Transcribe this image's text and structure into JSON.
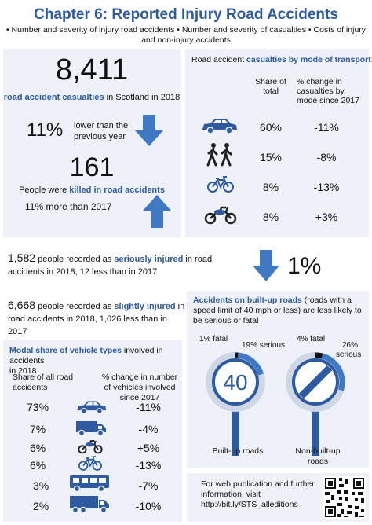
{
  "header": {
    "title": "Chapter 6: Reported Injury Road Accidents",
    "bullets_line1": "• Number and severity of injury road accidents • Number and severity of casualties • Costs of injury",
    "bullets_line2": "and non-injury accidents"
  },
  "casualties_panel": {
    "total_number": "8,411",
    "total_label_bold": "road accident casualties",
    "total_label_rest": " in Scotland in 2018",
    "decrease_pct": "11%",
    "decrease_text_1": "lower than the",
    "decrease_text_2": "previous year",
    "killed_number": "161",
    "killed_label_pre": "People were ",
    "killed_label_bold": "killed in road accidents",
    "killed_change": "11% more than 2017"
  },
  "mode_panel": {
    "title_pre": "Road accident ",
    "title_bold": "casualties by mode of transport",
    "title_post": ":",
    "col_share_1": "Share of",
    "col_share_2": "total",
    "col_change_1": "% change in",
    "col_change_2": "casualties by",
    "col_change_3": "mode since 2017",
    "rows": [
      {
        "icon": "car-icon",
        "share": "60%",
        "change": "-11%"
      },
      {
        "icon": "pedestrian-icon",
        "share": "15%",
        "change": "-8%"
      },
      {
        "icon": "bicycle-icon",
        "share": "8%",
        "change": "-13%"
      },
      {
        "icon": "motorcycle-icon",
        "share": "8%",
        "change": "+3%"
      }
    ]
  },
  "serious": {
    "number": "1,582",
    "pre": " people recorded as ",
    "bold": "seriously injured",
    "post": " in road",
    "line2": "accidents in 2018, 12 less than in 2017",
    "pct": "1%"
  },
  "slight": {
    "number": "6,668",
    "pre": " people recorded as ",
    "bold": "slightly injured",
    "post": " in",
    "line2": "road accidents in 2018, 1,026 less than in 2017"
  },
  "builtup_panel": {
    "title_bold": "Accidents on built-up roads",
    "title_rest_1": " (roads with a",
    "title_line2": "speed limit of 40 mph  or less) are less likely to",
    "title_line3": "be serious or fatal",
    "left_fatal": "1% fatal",
    "left_serious": "19% serious",
    "left_sign": "40",
    "left_label": "Built-up roads",
    "right_fatal": "4% fatal",
    "right_serious_1": "26%",
    "right_serious_2": "serious",
    "right_label_1": "Non-built-up",
    "right_label_2": "roads",
    "gauges": [
      {
        "fatal_pct": 1,
        "serious_pct": 19
      },
      {
        "fatal_pct": 4,
        "serious_pct": 26
      }
    ]
  },
  "vehicle_panel": {
    "title_bold": "Modal share of vehicle types",
    "title_rest": " involved in accidents",
    "title_line2": "in 2018",
    "col_share_1": "Share of all road",
    "col_share_2": "accidents",
    "col_change_1": "% change in number",
    "col_change_2": "of vehicles involved",
    "col_change_3": "since 2017",
    "rows": [
      {
        "icon": "car-icon",
        "share": "73%",
        "change": "-11%"
      },
      {
        "icon": "van-icon",
        "share": "7%",
        "change": "-4%"
      },
      {
        "icon": "motorcycle-icon",
        "share": "6%",
        "change": "+5%"
      },
      {
        "icon": "bicycle-icon",
        "share": "6%",
        "change": "-13%"
      },
      {
        "icon": "bus-icon",
        "share": "3%",
        "change": "-7%"
      },
      {
        "icon": "lorry-icon",
        "share": "2%",
        "change": "-10%"
      }
    ]
  },
  "footer": {
    "line1": "For web publication and further",
    "line2": "information, visit",
    "line3": "http://bit.ly/STS_alleditions"
  },
  "colors": {
    "accent": "#2d5aa0",
    "panel": "#eef1f8",
    "arrow": "#3f79c4"
  }
}
